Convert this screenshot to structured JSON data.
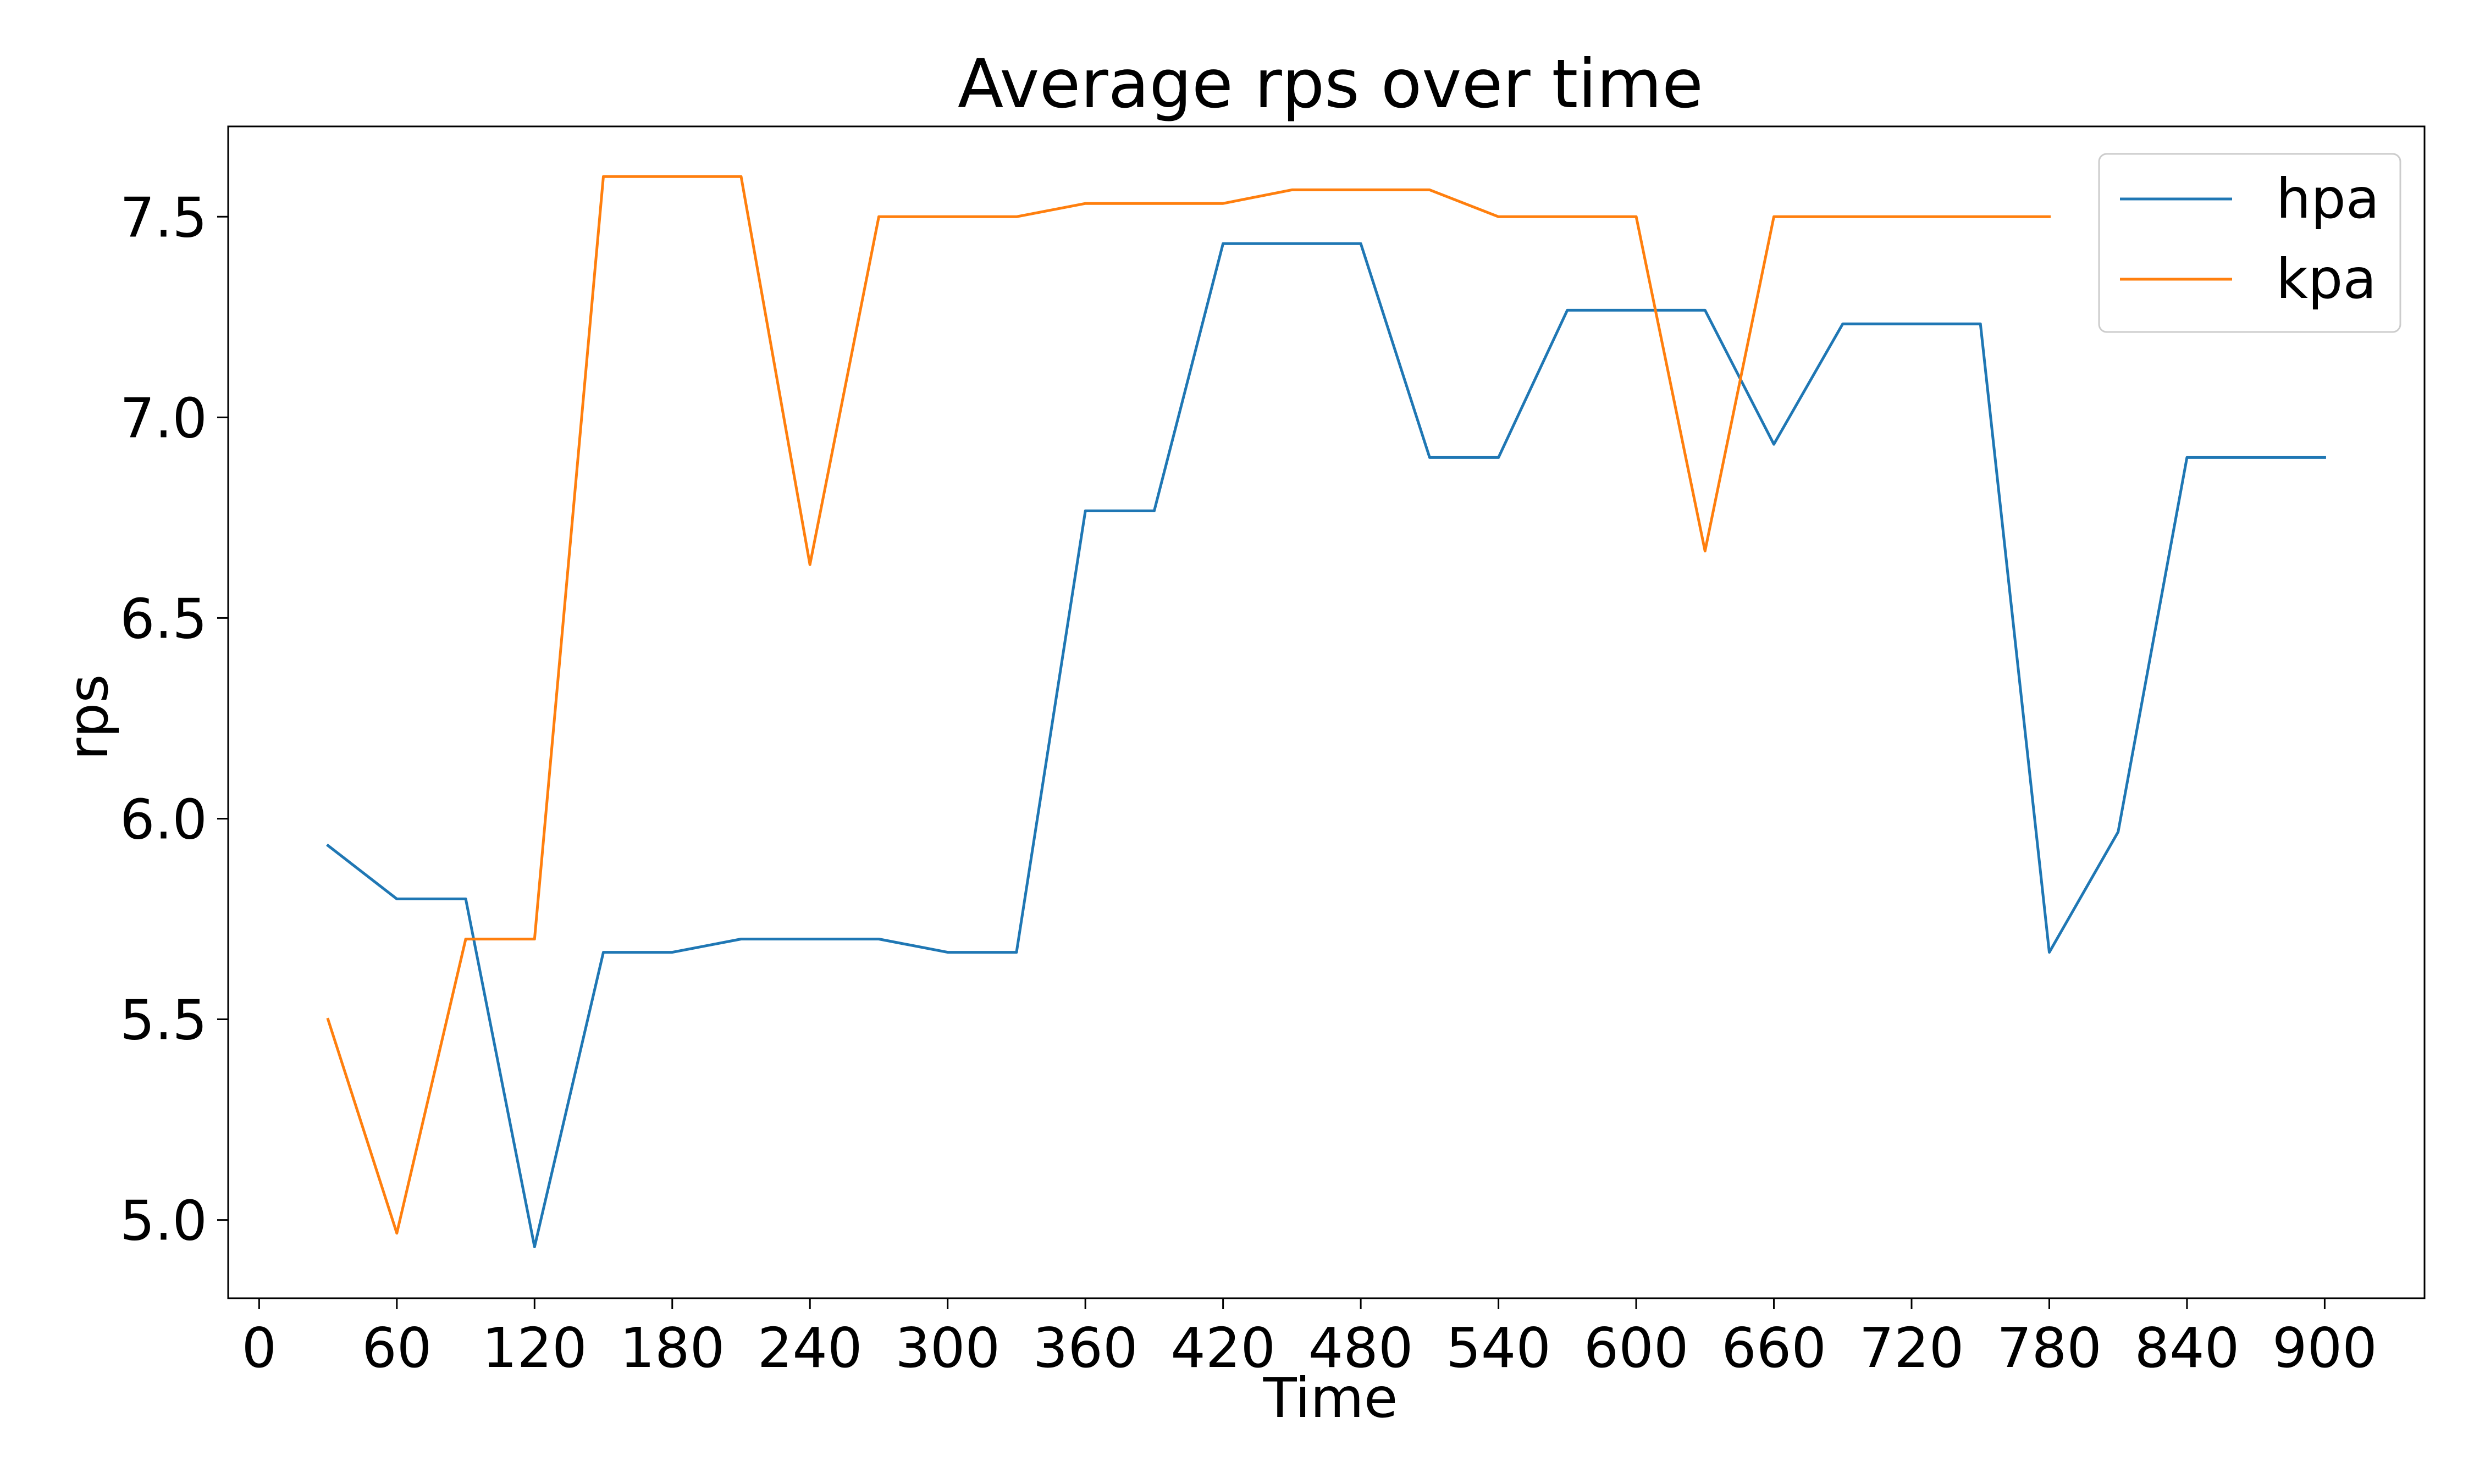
{
  "chart_data": {
    "type": "line",
    "title": "Average rps over time",
    "xlabel": "Time",
    "ylabel": "rps",
    "xlim": [
      -13.5,
      943.5
    ],
    "ylim": [
      4.805,
      7.725
    ],
    "xticks": [
      0,
      60,
      120,
      180,
      240,
      300,
      360,
      420,
      480,
      540,
      600,
      660,
      720,
      780,
      840,
      900
    ],
    "xtick_labels": [
      "0",
      "60",
      "120",
      "180",
      "240",
      "300",
      "360",
      "420",
      "480",
      "540",
      "600",
      "660",
      "720",
      "780",
      "840",
      "900"
    ],
    "yticks": [
      5.0,
      5.5,
      6.0,
      6.5,
      7.0,
      7.5
    ],
    "ytick_labels": [
      "5.0",
      "5.5",
      "6.0",
      "6.5",
      "7.0",
      "7.5"
    ],
    "grid": false,
    "legend_position": "top-right",
    "series": [
      {
        "name": "hpa",
        "color": "#1f77b4",
        "x": [
          30,
          60,
          90,
          120,
          150,
          180,
          210,
          240,
          270,
          300,
          330,
          360,
          390,
          420,
          450,
          480,
          510,
          540,
          570,
          600,
          630,
          660,
          690,
          720,
          750,
          780,
          810,
          840,
          870,
          900
        ],
        "values": [
          5.933,
          5.8,
          5.8,
          4.933,
          5.667,
          5.667,
          5.7,
          5.7,
          5.7,
          5.667,
          5.667,
          6.767,
          6.767,
          7.433,
          7.433,
          7.433,
          6.9,
          6.9,
          7.267,
          7.267,
          7.267,
          6.933,
          7.233,
          7.233,
          7.233,
          5.667,
          5.967,
          6.9,
          6.9,
          6.9
        ]
      },
      {
        "name": "kpa",
        "color": "#ff7f0e",
        "x": [
          30,
          60,
          90,
          120,
          150,
          180,
          210,
          240,
          270,
          300,
          330,
          360,
          390,
          420,
          450,
          480,
          510,
          540,
          570,
          600,
          630,
          660,
          690,
          720,
          750,
          780
        ],
        "values": [
          5.5,
          4.967,
          5.7,
          5.7,
          7.6,
          7.6,
          7.6,
          6.633,
          7.5,
          7.5,
          7.5,
          7.533,
          7.533,
          7.533,
          7.567,
          7.567,
          7.567,
          7.5,
          7.5,
          7.5,
          6.667,
          7.5,
          7.5,
          7.5,
          7.5,
          7.5
        ]
      }
    ]
  }
}
